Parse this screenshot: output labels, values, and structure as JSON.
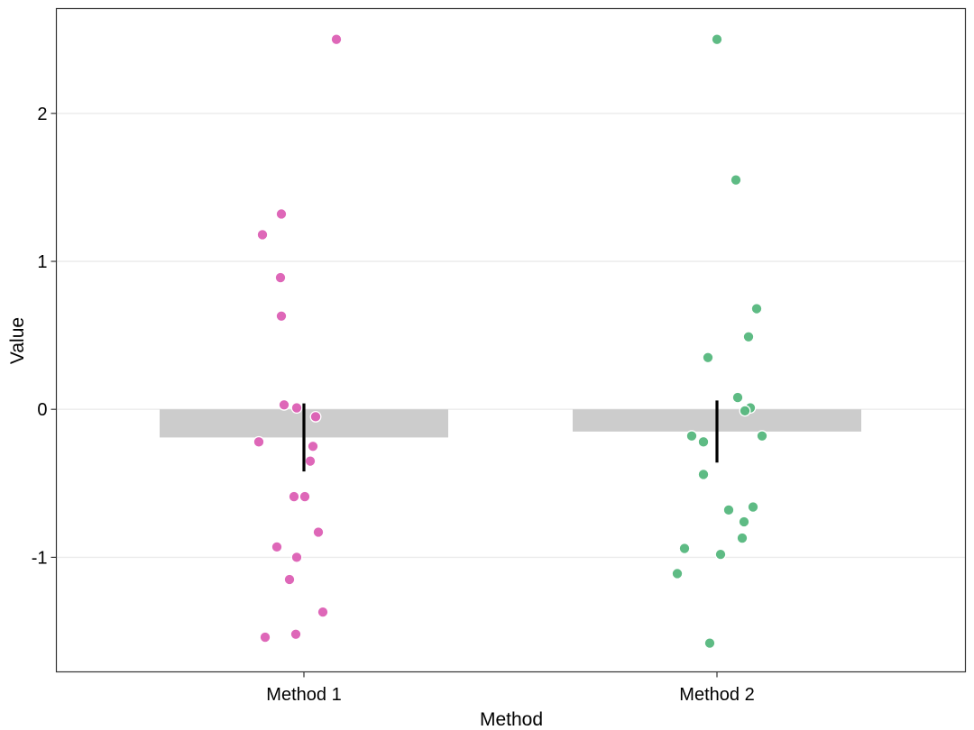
{
  "chart_data": {
    "type": "bar",
    "xlabel": "Method",
    "ylabel": "Value",
    "categories": [
      "Method 1",
      "Method 2"
    ],
    "ylim": [
      -1.78,
      2.7
    ],
    "yticks": [
      -1,
      0,
      1,
      2
    ],
    "grid": {
      "horizontal": true,
      "vertical": false
    },
    "bars": [
      {
        "category": "Method 1",
        "mean": -0.19,
        "error_low": -0.42,
        "error_high": 0.04
      },
      {
        "category": "Method 2",
        "mean": -0.15,
        "error_low": -0.36,
        "error_high": 0.06
      }
    ],
    "points": [
      {
        "category": "Method 1",
        "color": "#DC5FB4",
        "values": [
          2.5,
          1.32,
          1.18,
          0.89,
          0.63,
          0.03,
          0.01,
          -0.05,
          -0.22,
          -0.25,
          -0.35,
          -0.59,
          -0.59,
          -0.83,
          -0.93,
          -1.0,
          -1.15,
          -1.37,
          -1.52,
          -1.54
        ]
      },
      {
        "category": "Method 2",
        "color": "#55B77D",
        "values": [
          2.5,
          1.55,
          0.68,
          0.49,
          0.35,
          0.08,
          0.01,
          -0.01,
          -0.18,
          -0.18,
          -0.22,
          -0.44,
          -0.66,
          -0.68,
          -0.76,
          -0.87,
          -0.94,
          -0.98,
          -1.11,
          -1.58
        ]
      }
    ],
    "colors": {
      "bar_fill": "#CCCCCC",
      "error_bar": "#000000",
      "gridline": "#EBEBEB",
      "panel_border": "#333333"
    }
  }
}
